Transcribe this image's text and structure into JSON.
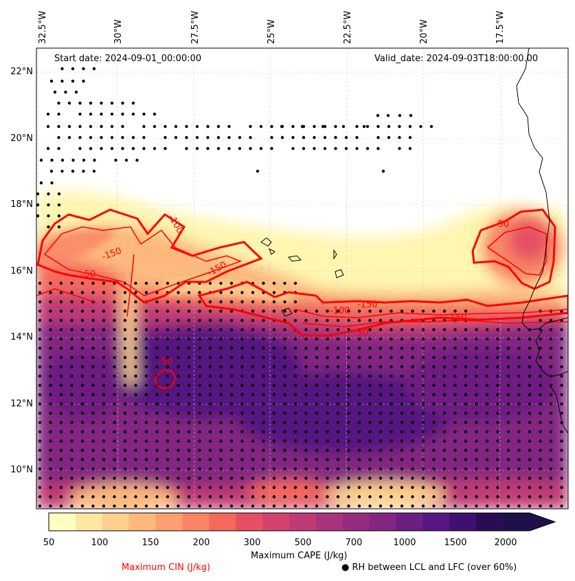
{
  "map": {
    "start_date": "Start date: 2024-09-01_00:00:00",
    "valid_date": "Valid_date: 2024-09-03T18:00:00.00",
    "lon_labels": [
      "32.5°W",
      "30°W",
      "27.5°W",
      "25°W",
      "22.5°W",
      "20°W",
      "17.5°W"
    ],
    "lat_labels": [
      "22°N",
      "20°N",
      "18°N",
      "16°N",
      "14°N",
      "12°N",
      "10°N"
    ],
    "cin_contour_labels": [
      "-150",
      "-100",
      "-50",
      "-150",
      "-50",
      "-150",
      "-50",
      "-100",
      "-150",
      "-50"
    ]
  },
  "colorbar": {
    "title": "Maximum CAPE (J/kg)",
    "ticks": [
      "50",
      "100",
      "150",
      "200",
      "300",
      "500",
      "700",
      "1000",
      "1500",
      "2000"
    ],
    "colors": [
      "#fffdc0",
      "#fee6a3",
      "#fed08d",
      "#fdb97d",
      "#fca06f",
      "#fa8565",
      "#f4695c",
      "#e55064",
      "#d3436e",
      "#c03a76",
      "#ab337c",
      "#962c80",
      "#822681",
      "#6d1f81",
      "#571680",
      "#401070",
      "#2a0c55",
      "#1d1147"
    ]
  },
  "legend": {
    "cin_label": "Maximum CIN (J/kg)",
    "rh_marker": "●",
    "rh_label": "RH between LCL and LFC (over 60%)"
  },
  "colors": {
    "cin_line": "#ff0000",
    "coast": "#000000"
  }
}
